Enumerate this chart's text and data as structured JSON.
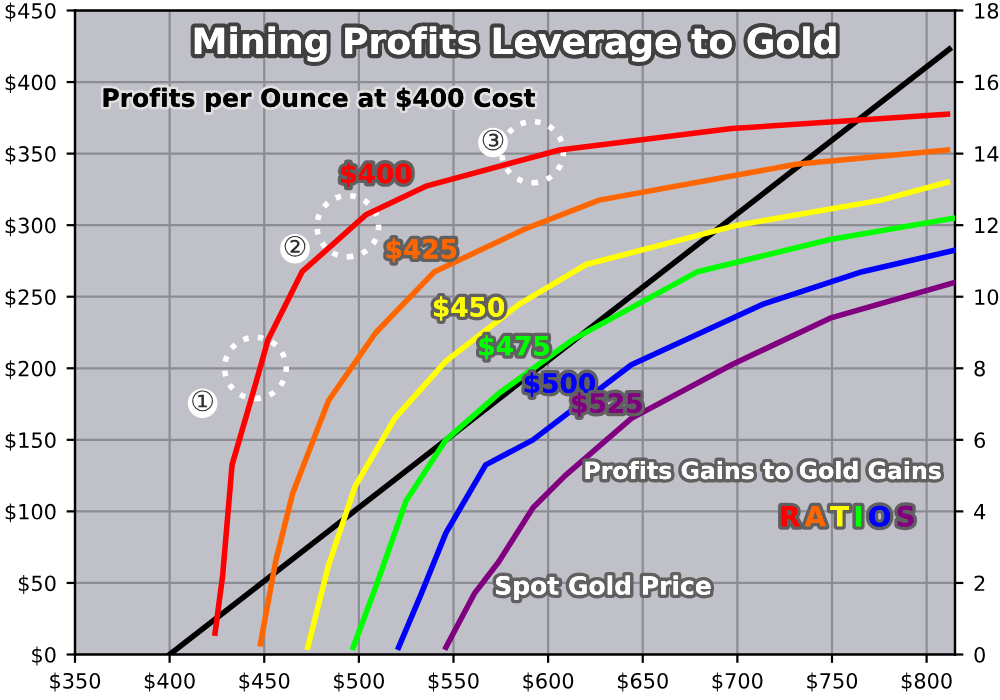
{
  "chart_data": {
    "type": "line",
    "title": "Mining Profits Leverage to Gold",
    "xlabel": "Spot Gold Price",
    "y2label": "Profits Gains to Gold Gains",
    "annotations": [
      "RATIOS",
      "①",
      "②",
      "③"
    ],
    "xlim": [
      350,
      815
    ],
    "xticks": [
      {
        "value": 350,
        "label": "$350"
      },
      {
        "value": 400,
        "label": "$400"
      },
      {
        "value": 450,
        "label": "$450"
      },
      {
        "value": 500,
        "label": "$500"
      },
      {
        "value": 550,
        "label": "$550"
      },
      {
        "value": 600,
        "label": "$600"
      },
      {
        "value": 650,
        "label": "$650"
      },
      {
        "value": 700,
        "label": "$700"
      },
      {
        "value": 750,
        "label": "$750"
      },
      {
        "value": 800,
        "label": "$800"
      }
    ],
    "ylim": [
      0,
      450
    ],
    "yticks": [
      {
        "value": 0,
        "label": "$0"
      },
      {
        "value": 50,
        "label": "$50"
      },
      {
        "value": 100,
        "label": "$100"
      },
      {
        "value": 150,
        "label": "$150"
      },
      {
        "value": 200,
        "label": "$200"
      },
      {
        "value": 250,
        "label": "$250"
      },
      {
        "value": 300,
        "label": "$300"
      },
      {
        "value": 350,
        "label": "$350"
      },
      {
        "value": 400,
        "label": "$400"
      },
      {
        "value": 450,
        "label": "$450"
      }
    ],
    "y2lim": [
      0,
      18
    ],
    "y2ticks": [
      0,
      2,
      4,
      6,
      8,
      10,
      12,
      14,
      16,
      18
    ],
    "grid": true,
    "marker": "none",
    "line_style": "solid",
    "series": [
      {
        "name": "Profits per Ounce at $400 Cost",
        "color": "#000000",
        "x": [
          400,
          812
        ],
        "values": [
          0,
          423
        ]
      },
      {
        "name": "$400",
        "color": "#ff0000",
        "axis": "y2",
        "x": [
          424,
          428,
          433,
          444,
          452,
          470,
          504,
          536,
          606,
          697,
          811
        ],
        "values": [
          0.6,
          2.2,
          5.3,
          7.3,
          8.8,
          10.7,
          12.3,
          13.1,
          14.1,
          14.7,
          15.1
        ]
      },
      {
        "name": "$425",
        "color": "#ff6600",
        "axis": "y2",
        "x": [
          448,
          456,
          465,
          484,
          509,
          540,
          588,
          627,
          731,
          811
        ],
        "values": [
          0.3,
          2.6,
          4.5,
          7.1,
          9.0,
          10.7,
          11.9,
          12.7,
          13.7,
          14.1
        ]
      },
      {
        "name": "$450",
        "color": "#ffff00",
        "axis": "y2",
        "x": [
          473,
          484,
          498,
          519,
          546,
          585,
          620,
          700,
          776,
          811
        ],
        "values": [
          0.2,
          2.5,
          4.7,
          6.6,
          8.2,
          9.8,
          10.9,
          12.0,
          12.7,
          13.2
        ]
      },
      {
        "name": "$475",
        "color": "#00ff00",
        "axis": "y2",
        "x": [
          497,
          509,
          525,
          546,
          574,
          613,
          679,
          749,
          815
        ],
        "values": [
          0.2,
          1.9,
          4.3,
          6.0,
          7.3,
          8.8,
          10.7,
          11.6,
          12.2
        ]
      },
      {
        "name": "$500",
        "color": "#0000ff",
        "axis": "y2",
        "x": [
          521,
          533,
          546,
          567,
          592,
          644,
          714,
          766,
          815
        ],
        "values": [
          0.2,
          1.7,
          3.4,
          5.3,
          6.0,
          8.1,
          9.8,
          10.7,
          11.3
        ]
      },
      {
        "name": "$525",
        "color": "#800080",
        "axis": "y2",
        "x": [
          546,
          561,
          574,
          592,
          609,
          644,
          697,
          749,
          815
        ],
        "values": [
          0.2,
          1.7,
          2.6,
          4.1,
          5.0,
          6.6,
          8.1,
          9.4,
          10.4
        ]
      }
    ]
  }
}
